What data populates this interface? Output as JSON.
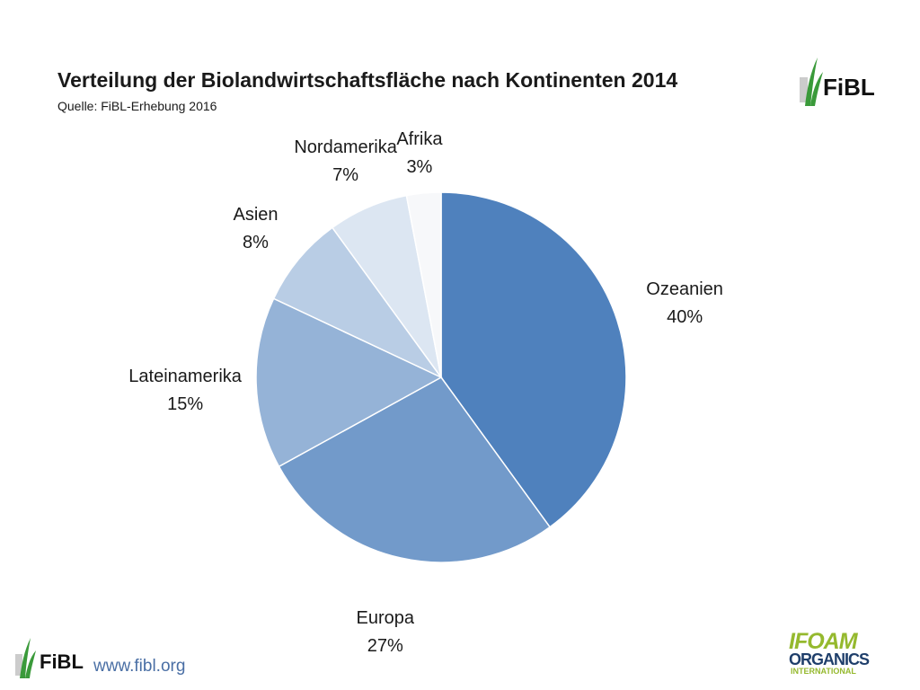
{
  "header": {
    "title": "Verteilung der Biolandwirtschaftsfläche nach Kontinenten 2014",
    "subtitle": "Quelle: FiBL-Erhebung 2016"
  },
  "logos": {
    "top_logo_text": "FiBL",
    "footer_logo_text": "FiBL",
    "footer_url": "www.fibl.org",
    "partner_line1": "IFOAM",
    "partner_line2": "ORGANICS",
    "partner_line3": "INTERNATIONAL",
    "brand_green": "#3a9a3a",
    "partner_green": "#95b92e",
    "partner_blue": "#1f3f6b"
  },
  "chart_data": {
    "type": "pie",
    "title": "Verteilung der Biolandwirtschaftsfläche nach Kontinenten 2014",
    "subtitle": "Quelle: FiBL-Erhebung 2016",
    "legend": "none",
    "slices": [
      {
        "name": "Ozeanien",
        "value": 40,
        "label": "40%",
        "color": "#4f81bd"
      },
      {
        "name": "Europa",
        "value": 27,
        "label": "27%",
        "color": "#729aca"
      },
      {
        "name": "Lateinamerika",
        "value": 15,
        "label": "15%",
        "color": "#95b3d7"
      },
      {
        "name": "Asien",
        "value": 8,
        "label": "8%",
        "color": "#b9cde5"
      },
      {
        "name": "Nordamerika",
        "value": 7,
        "label": "7%",
        "color": "#dce6f2"
      },
      {
        "name": "Afrika",
        "value": 3,
        "label": "3%",
        "color": "#f7f8fa"
      }
    ]
  }
}
